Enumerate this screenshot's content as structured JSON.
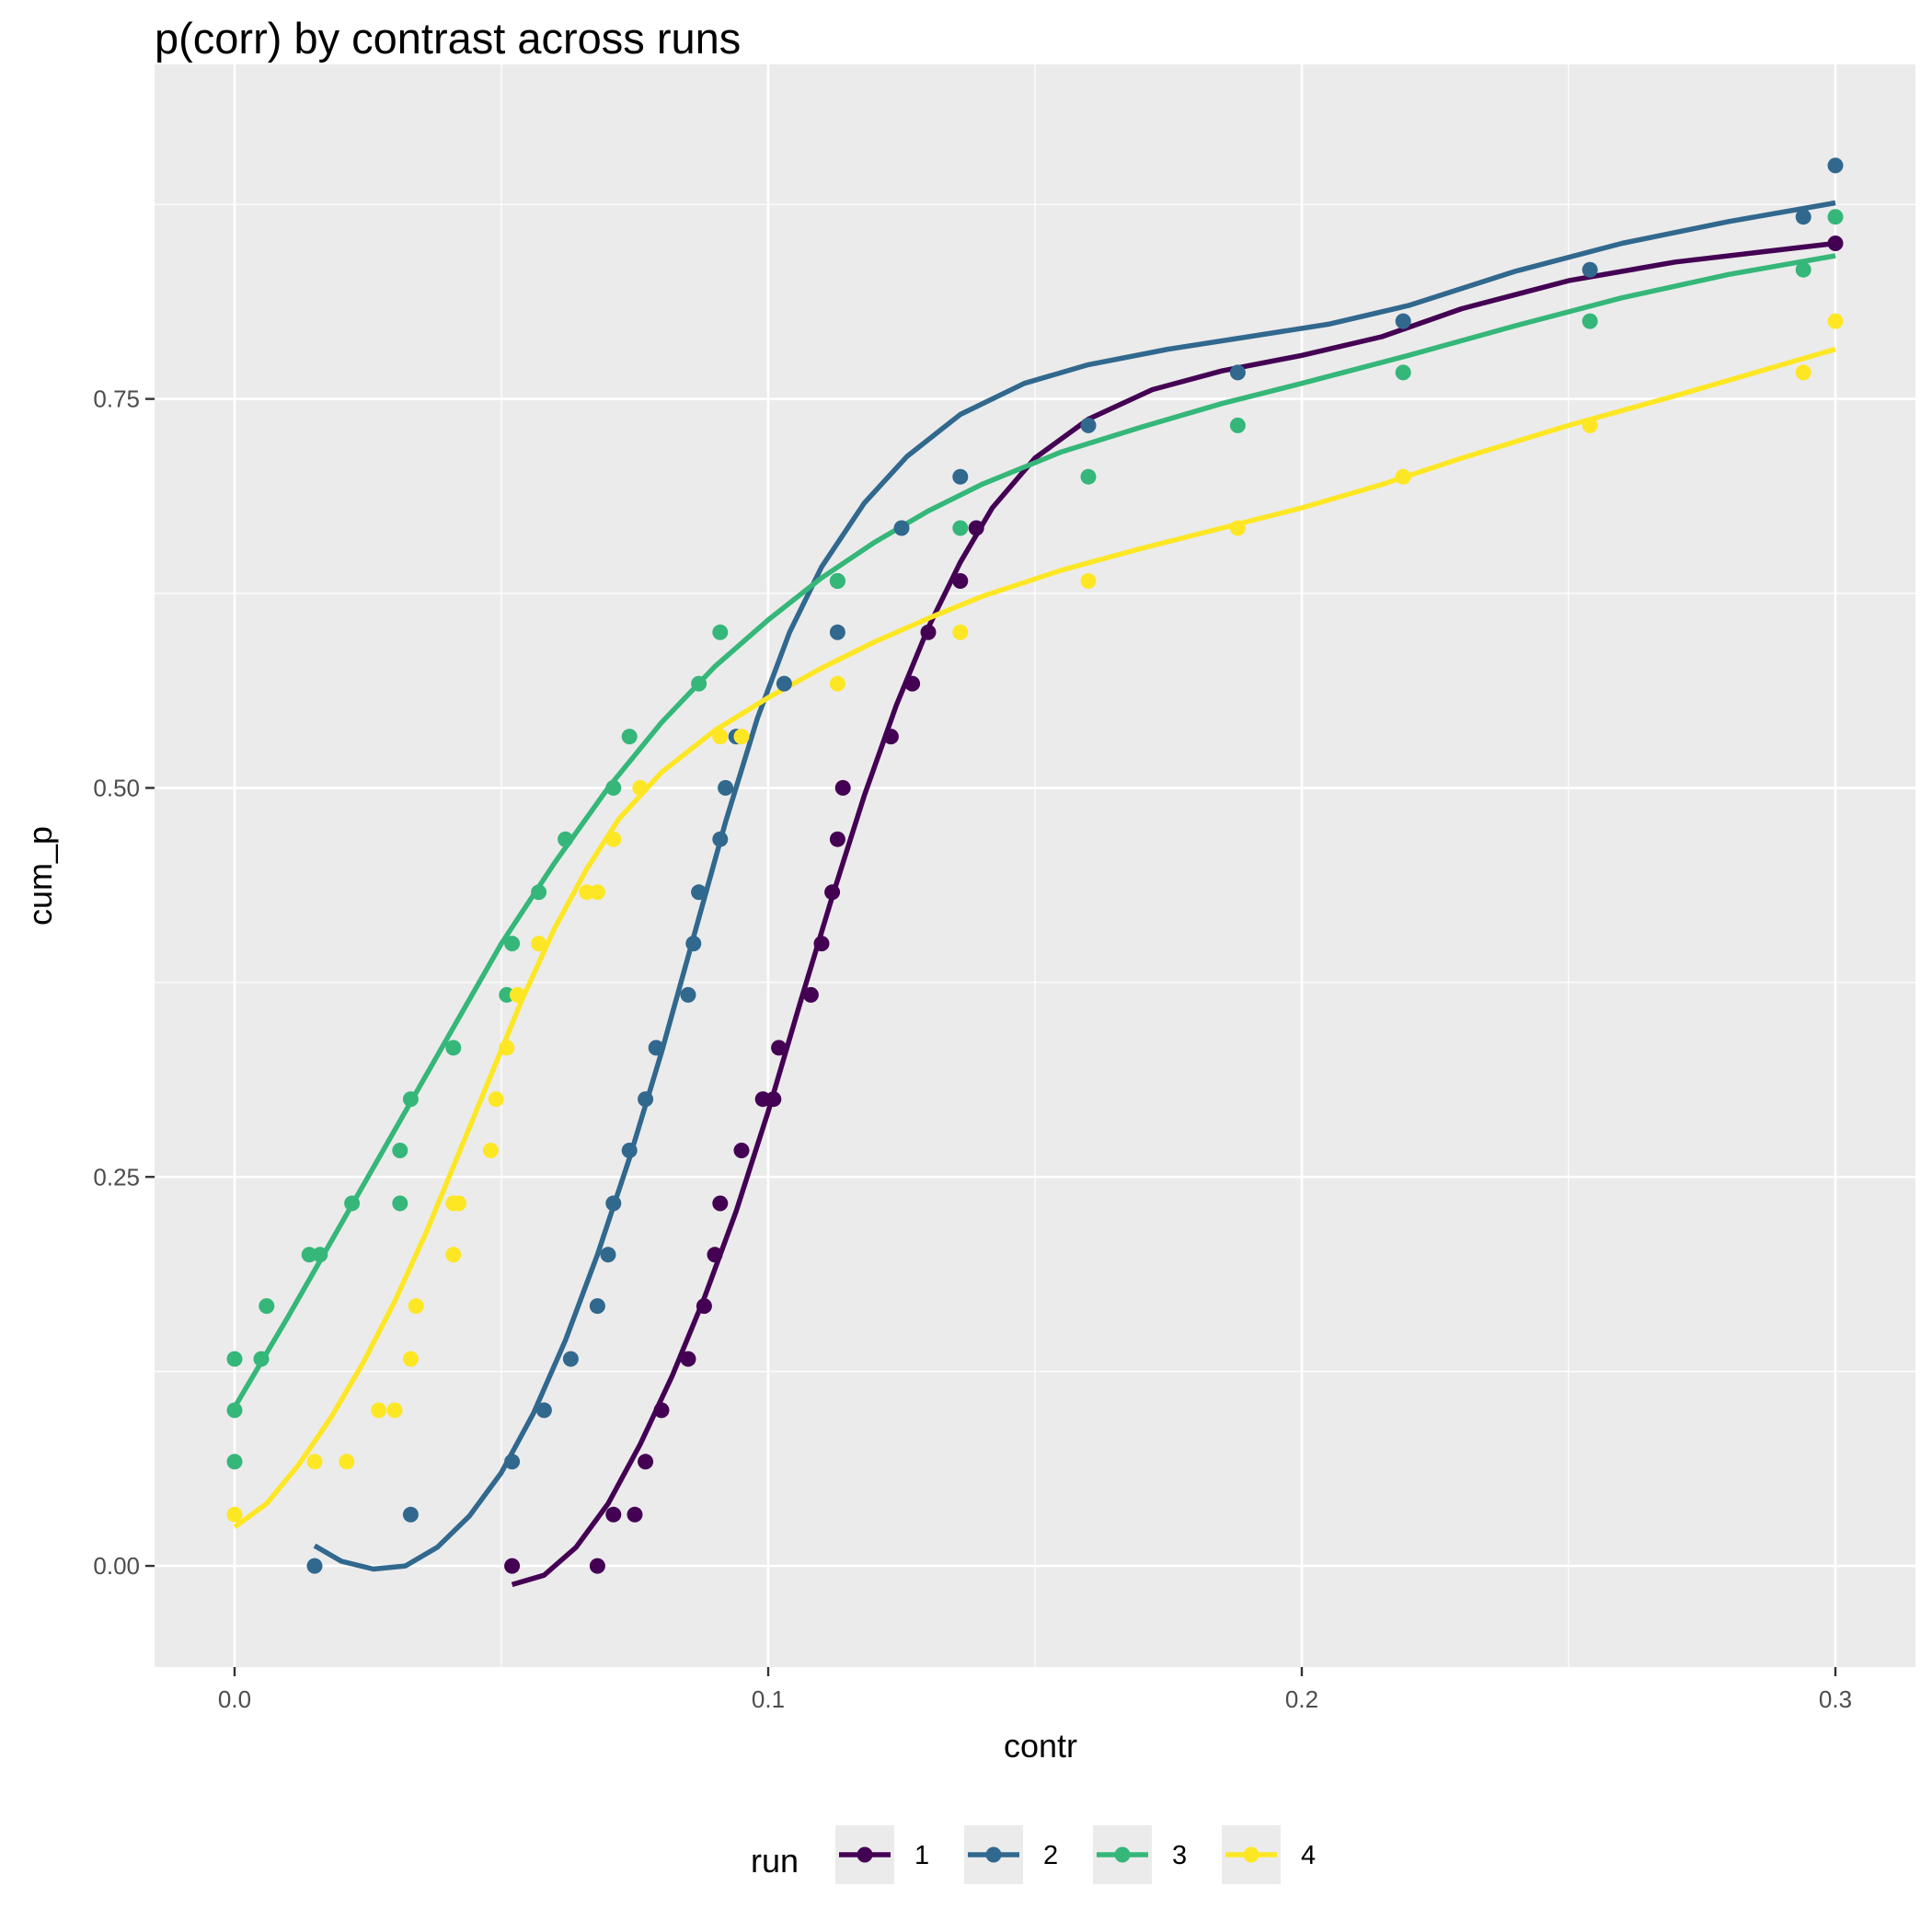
{
  "chart_data": {
    "type": "scatter",
    "title": "p(corr) by contrast across runs",
    "xlabel": "contr",
    "ylabel": "cum_p",
    "xlim": [
      -0.015,
      0.315
    ],
    "ylim": [
      -0.065,
      0.965
    ],
    "xticks": [
      0.0,
      0.1,
      0.2,
      0.3
    ],
    "xtick_labels": [
      "0.0",
      "0.1",
      "0.2",
      "0.3"
    ],
    "yticks": [
      0.0,
      0.25,
      0.5,
      0.75
    ],
    "ytick_labels": [
      "0.00",
      "0.25",
      "0.50",
      "0.75"
    ],
    "grid": true,
    "legend": {
      "title": "run",
      "position": "bottom"
    },
    "series": [
      {
        "name": "1",
        "color": "#440154",
        "points": [
          [
            0.052,
            0.0
          ],
          [
            0.068,
            0.0
          ],
          [
            0.071,
            0.033
          ],
          [
            0.075,
            0.033
          ],
          [
            0.077,
            0.067
          ],
          [
            0.08,
            0.1
          ],
          [
            0.085,
            0.133
          ],
          [
            0.088,
            0.167
          ],
          [
            0.09,
            0.2
          ],
          [
            0.091,
            0.233
          ],
          [
            0.095,
            0.267
          ],
          [
            0.099,
            0.3
          ],
          [
            0.101,
            0.3
          ],
          [
            0.102,
            0.333
          ],
          [
            0.108,
            0.367
          ],
          [
            0.11,
            0.4
          ],
          [
            0.112,
            0.433
          ],
          [
            0.113,
            0.467
          ],
          [
            0.114,
            0.5
          ],
          [
            0.123,
            0.533
          ],
          [
            0.127,
            0.567
          ],
          [
            0.13,
            0.6
          ],
          [
            0.136,
            0.633
          ],
          [
            0.139,
            0.667
          ],
          [
            0.3,
            0.85
          ]
        ],
        "smooth": [
          [
            0.052,
            -0.012
          ],
          [
            0.058,
            -0.006
          ],
          [
            0.064,
            0.012
          ],
          [
            0.07,
            0.04
          ],
          [
            0.076,
            0.078
          ],
          [
            0.082,
            0.122
          ],
          [
            0.088,
            0.172
          ],
          [
            0.094,
            0.228
          ],
          [
            0.1,
            0.292
          ],
          [
            0.106,
            0.362
          ],
          [
            0.112,
            0.43
          ],
          [
            0.118,
            0.495
          ],
          [
            0.124,
            0.553
          ],
          [
            0.13,
            0.603
          ],
          [
            0.136,
            0.645
          ],
          [
            0.142,
            0.68
          ],
          [
            0.15,
            0.712
          ],
          [
            0.16,
            0.737
          ],
          [
            0.172,
            0.756
          ],
          [
            0.185,
            0.768
          ],
          [
            0.2,
            0.778
          ],
          [
            0.215,
            0.79
          ],
          [
            0.23,
            0.808
          ],
          [
            0.25,
            0.826
          ],
          [
            0.27,
            0.838
          ],
          [
            0.285,
            0.844
          ],
          [
            0.3,
            0.85
          ]
        ]
      },
      {
        "name": "2",
        "color": "#31688e",
        "points": [
          [
            0.015,
            0.0
          ],
          [
            0.033,
            0.033
          ],
          [
            0.052,
            0.067
          ],
          [
            0.058,
            0.1
          ],
          [
            0.063,
            0.133
          ],
          [
            0.068,
            0.167
          ],
          [
            0.07,
            0.2
          ],
          [
            0.071,
            0.233
          ],
          [
            0.074,
            0.267
          ],
          [
            0.077,
            0.3
          ],
          [
            0.079,
            0.333
          ],
          [
            0.085,
            0.367
          ],
          [
            0.086,
            0.4
          ],
          [
            0.087,
            0.433
          ],
          [
            0.091,
            0.467
          ],
          [
            0.092,
            0.5
          ],
          [
            0.094,
            0.533
          ],
          [
            0.103,
            0.567
          ],
          [
            0.113,
            0.6
          ],
          [
            0.113,
            0.633
          ],
          [
            0.125,
            0.667
          ],
          [
            0.136,
            0.7
          ],
          [
            0.16,
            0.733
          ],
          [
            0.188,
            0.767
          ],
          [
            0.219,
            0.8
          ],
          [
            0.254,
            0.833
          ],
          [
            0.294,
            0.867
          ],
          [
            0.3,
            0.9
          ]
        ],
        "smooth": [
          [
            0.015,
            0.013
          ],
          [
            0.02,
            0.003
          ],
          [
            0.026,
            -0.002
          ],
          [
            0.032,
            0.0
          ],
          [
            0.038,
            0.012
          ],
          [
            0.044,
            0.032
          ],
          [
            0.05,
            0.06
          ],
          [
            0.056,
            0.098
          ],
          [
            0.062,
            0.145
          ],
          [
            0.068,
            0.2
          ],
          [
            0.074,
            0.262
          ],
          [
            0.08,
            0.33
          ],
          [
            0.086,
            0.404
          ],
          [
            0.092,
            0.478
          ],
          [
            0.098,
            0.545
          ],
          [
            0.104,
            0.6
          ],
          [
            0.11,
            0.642
          ],
          [
            0.118,
            0.683
          ],
          [
            0.126,
            0.713
          ],
          [
            0.136,
            0.74
          ],
          [
            0.148,
            0.76
          ],
          [
            0.16,
            0.772
          ],
          [
            0.175,
            0.782
          ],
          [
            0.19,
            0.79
          ],
          [
            0.205,
            0.798
          ],
          [
            0.22,
            0.81
          ],
          [
            0.24,
            0.832
          ],
          [
            0.26,
            0.85
          ],
          [
            0.28,
            0.864
          ],
          [
            0.3,
            0.876
          ]
        ]
      },
      {
        "name": "3",
        "color": "#35b779",
        "points": [
          [
            0.0,
            0.067
          ],
          [
            0.0,
            0.1
          ],
          [
            0.0,
            0.133
          ],
          [
            0.005,
            0.133
          ],
          [
            0.006,
            0.167
          ],
          [
            0.014,
            0.2
          ],
          [
            0.016,
            0.2
          ],
          [
            0.022,
            0.233
          ],
          [
            0.031,
            0.233
          ],
          [
            0.031,
            0.267
          ],
          [
            0.033,
            0.3
          ],
          [
            0.041,
            0.333
          ],
          [
            0.051,
            0.367
          ],
          [
            0.052,
            0.4
          ],
          [
            0.057,
            0.433
          ],
          [
            0.062,
            0.467
          ],
          [
            0.071,
            0.5
          ],
          [
            0.074,
            0.533
          ],
          [
            0.087,
            0.567
          ],
          [
            0.091,
            0.6
          ],
          [
            0.113,
            0.633
          ],
          [
            0.136,
            0.667
          ],
          [
            0.16,
            0.7
          ],
          [
            0.188,
            0.733
          ],
          [
            0.219,
            0.767
          ],
          [
            0.254,
            0.8
          ],
          [
            0.294,
            0.833
          ],
          [
            0.3,
            0.867
          ]
        ],
        "smooth": [
          [
            0.0,
            0.102
          ],
          [
            0.01,
            0.16
          ],
          [
            0.02,
            0.22
          ],
          [
            0.03,
            0.28
          ],
          [
            0.04,
            0.34
          ],
          [
            0.05,
            0.4
          ],
          [
            0.06,
            0.452
          ],
          [
            0.07,
            0.5
          ],
          [
            0.08,
            0.542
          ],
          [
            0.09,
            0.578
          ],
          [
            0.1,
            0.608
          ],
          [
            0.11,
            0.635
          ],
          [
            0.12,
            0.658
          ],
          [
            0.13,
            0.678
          ],
          [
            0.14,
            0.695
          ],
          [
            0.155,
            0.716
          ],
          [
            0.17,
            0.732
          ],
          [
            0.185,
            0.747
          ],
          [
            0.2,
            0.76
          ],
          [
            0.22,
            0.778
          ],
          [
            0.24,
            0.797
          ],
          [
            0.26,
            0.815
          ],
          [
            0.28,
            0.83
          ],
          [
            0.3,
            0.842
          ]
        ]
      },
      {
        "name": "4",
        "color": "#fde725",
        "points": [
          [
            0.0,
            0.033
          ],
          [
            0.015,
            0.067
          ],
          [
            0.021,
            0.067
          ],
          [
            0.027,
            0.1
          ],
          [
            0.03,
            0.1
          ],
          [
            0.033,
            0.133
          ],
          [
            0.034,
            0.167
          ],
          [
            0.041,
            0.2
          ],
          [
            0.041,
            0.233
          ],
          [
            0.042,
            0.233
          ],
          [
            0.048,
            0.267
          ],
          [
            0.049,
            0.3
          ],
          [
            0.051,
            0.333
          ],
          [
            0.053,
            0.367
          ],
          [
            0.057,
            0.4
          ],
          [
            0.066,
            0.433
          ],
          [
            0.068,
            0.433
          ],
          [
            0.071,
            0.467
          ],
          [
            0.076,
            0.5
          ],
          [
            0.091,
            0.533
          ],
          [
            0.095,
            0.533
          ],
          [
            0.113,
            0.567
          ],
          [
            0.136,
            0.6
          ],
          [
            0.16,
            0.633
          ],
          [
            0.188,
            0.667
          ],
          [
            0.219,
            0.7
          ],
          [
            0.254,
            0.733
          ],
          [
            0.294,
            0.767
          ],
          [
            0.3,
            0.8
          ]
        ],
        "smooth": [
          [
            0.0,
            0.025
          ],
          [
            0.006,
            0.04
          ],
          [
            0.012,
            0.065
          ],
          [
            0.018,
            0.095
          ],
          [
            0.024,
            0.13
          ],
          [
            0.03,
            0.17
          ],
          [
            0.036,
            0.215
          ],
          [
            0.042,
            0.265
          ],
          [
            0.048,
            0.315
          ],
          [
            0.054,
            0.365
          ],
          [
            0.06,
            0.41
          ],
          [
            0.066,
            0.448
          ],
          [
            0.072,
            0.48
          ],
          [
            0.08,
            0.51
          ],
          [
            0.09,
            0.537
          ],
          [
            0.1,
            0.558
          ],
          [
            0.11,
            0.577
          ],
          [
            0.12,
            0.594
          ],
          [
            0.13,
            0.609
          ],
          [
            0.14,
            0.623
          ],
          [
            0.155,
            0.64
          ],
          [
            0.17,
            0.654
          ],
          [
            0.185,
            0.667
          ],
          [
            0.2,
            0.68
          ],
          [
            0.215,
            0.695
          ],
          [
            0.23,
            0.712
          ],
          [
            0.25,
            0.733
          ],
          [
            0.27,
            0.752
          ],
          [
            0.285,
            0.767
          ],
          [
            0.3,
            0.782
          ]
        ]
      }
    ]
  }
}
